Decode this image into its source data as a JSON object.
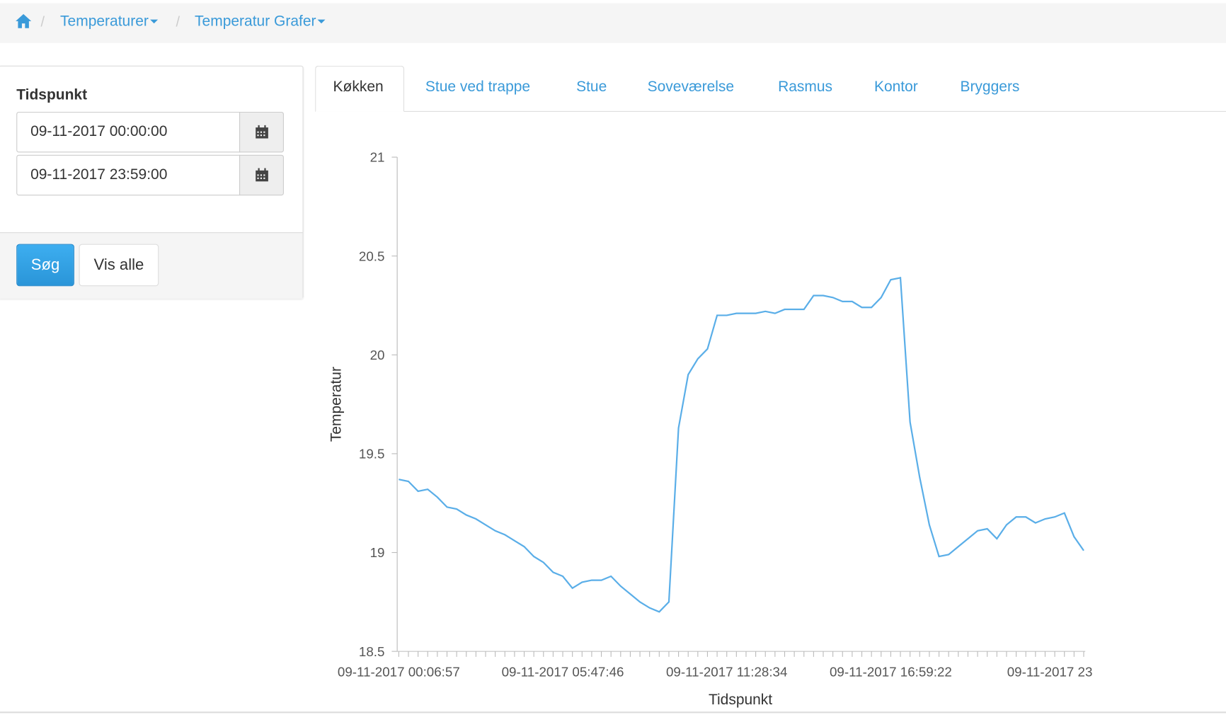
{
  "nav": {
    "breadcrumbs": [
      "Temperaturer",
      "Temperatur Grafer"
    ]
  },
  "form": {
    "label": "Tidspunkt",
    "from": "09-11-2017 00:00:00",
    "to": "09-11-2017 23:59:00",
    "search_button": "Søg",
    "show_all_button": "Vis alle"
  },
  "tabs": {
    "items": [
      "Køkken",
      "Stue ved trappe",
      "Stue",
      "Soveværelse",
      "Rasmus",
      "Kontor",
      "Bryggers"
    ],
    "active": "Køkken"
  },
  "chart_data": {
    "type": "line",
    "x_label": "Tidspunkt",
    "y_label": "Temperatur",
    "color": "#5aaee8",
    "categories": [
      "09-11-2017 00:06:57",
      null,
      null,
      null,
      null,
      null,
      null,
      null,
      null,
      null,
      null,
      null,
      null,
      null,
      null,
      null,
      null,
      "09-11-2017 05:47:46",
      null,
      null,
      null,
      null,
      null,
      null,
      null,
      null,
      null,
      null,
      null,
      null,
      null,
      null,
      null,
      null,
      "09-11-2017 11:28:34",
      null,
      null,
      null,
      null,
      null,
      null,
      null,
      null,
      null,
      null,
      null,
      null,
      null,
      null,
      null,
      null,
      "09-11-2017 16:59:22",
      null,
      null,
      null,
      null,
      null,
      null,
      null,
      null,
      null,
      null,
      null,
      null,
      null,
      null,
      null,
      null,
      null,
      null,
      null,
      "09-11-2017 23"
    ],
    "values": [
      19.37,
      19.36,
      19.31,
      19.32,
      19.28,
      19.23,
      19.22,
      19.19,
      19.17,
      19.14,
      19.11,
      19.09,
      19.06,
      19.03,
      18.98,
      18.95,
      18.9,
      18.88,
      18.82,
      18.85,
      18.86,
      18.86,
      18.88,
      18.83,
      18.79,
      18.75,
      18.72,
      18.7,
      18.75,
      19.63,
      19.9,
      19.98,
      20.03,
      20.2,
      20.2,
      20.21,
      20.21,
      20.21,
      20.22,
      20.21,
      20.23,
      20.23,
      20.23,
      20.3,
      20.3,
      20.29,
      20.27,
      20.27,
      20.24,
      20.24,
      20.29,
      20.38,
      20.39,
      19.66,
      19.38,
      19.14,
      18.98,
      18.99,
      19.03,
      19.07,
      19.11,
      19.12,
      19.07,
      19.14,
      19.18,
      19.18,
      19.15,
      19.17,
      19.18,
      19.2,
      19.08,
      19.01
    ],
    "ylim": [
      18.5,
      21
    ],
    "yticks": [
      18.5,
      19,
      19.5,
      20,
      20.5,
      21
    ]
  }
}
